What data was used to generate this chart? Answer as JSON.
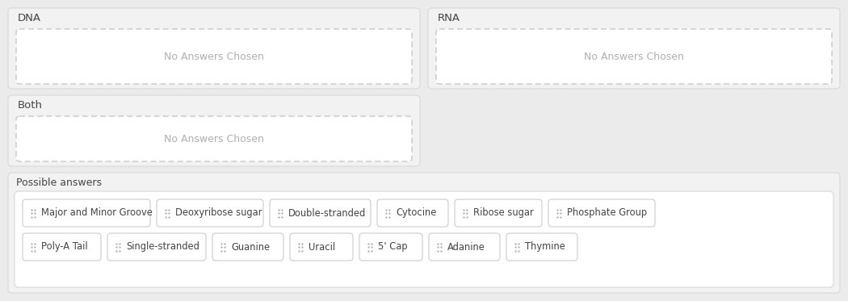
{
  "bg_color": "#ebebeb",
  "panel_bg": "#f2f2f2",
  "white": "#ffffff",
  "border_dashed_color": "#c8c8c8",
  "border_solid_color": "#d8d8d8",
  "text_gray": "#b0b0b0",
  "text_dark": "#444444",
  "possible_bg": "#f2f2f2",
  "tag_bg": "#ffffff",
  "tag_border": "#cccccc",
  "dot_color": "#aaaaaa",
  "dna_label": "DNA",
  "rna_label": "RNA",
  "both_label": "Both",
  "no_answer": "No Answers Chosen",
  "possible_label": "Possible answers",
  "row1_tags": [
    "Major and Minor Groove",
    "Deoxyribose sugar",
    "Double-stranded",
    "Cytocine",
    "Ribose sugar",
    "Phosphate Group"
  ],
  "row1_widths": [
    158,
    132,
    125,
    88,
    108,
    132
  ],
  "row2_tags": [
    "Poly-A Tail",
    "Single-stranded",
    "Guanine",
    "Uracil",
    "5' Cap",
    "Adanine",
    "Thymine"
  ],
  "row2_widths": [
    97,
    122,
    88,
    78,
    78,
    88,
    88
  ]
}
